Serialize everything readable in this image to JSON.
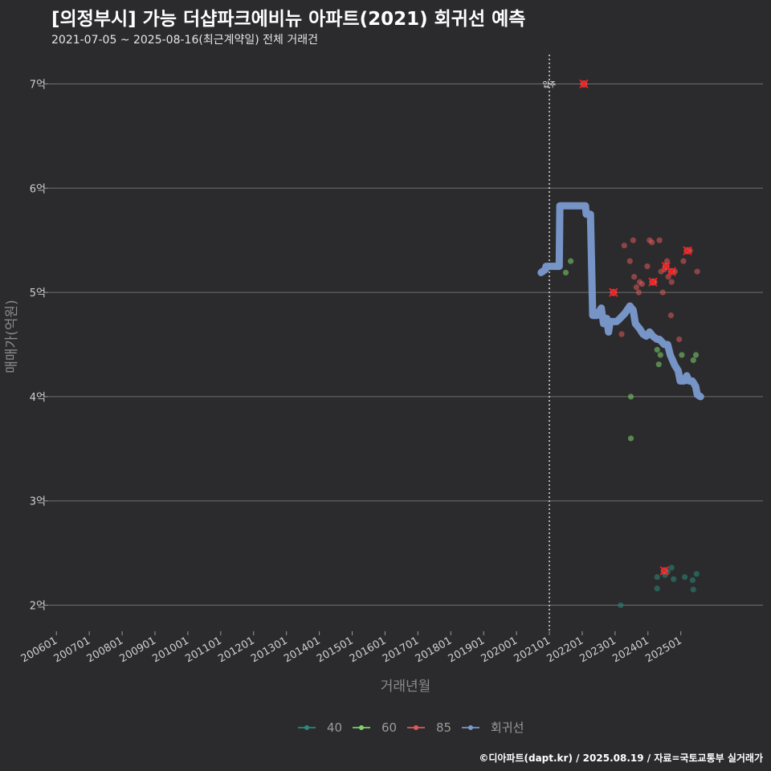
{
  "title": "[의정부시] 가능 더샵파크에비뉴 아파트(2021) 회귀선 예측",
  "subtitle": "2021-07-05 ~ 2025-08-16(최근계약일) 전체 거래건",
  "footer": "©디아파트(dapt.kr) / 2025.08.19 / 자료=국토교통부 실거래가",
  "chart_data": {
    "type": "scatter",
    "xlabel": "거래년월",
    "ylabel": "매매가(억원)",
    "x_unit": "year (decimal)",
    "xlim": [
      2005.75,
      2027.5
    ],
    "ylim": [
      1.75,
      7.25
    ],
    "x_ticks": [
      {
        "label": "200601",
        "x": 2006.0
      },
      {
        "label": "200701",
        "x": 2007.0
      },
      {
        "label": "200801",
        "x": 2008.0
      },
      {
        "label": "200901",
        "x": 2009.0
      },
      {
        "label": "201001",
        "x": 2010.0
      },
      {
        "label": "201101",
        "x": 2011.0
      },
      {
        "label": "201201",
        "x": 2012.0
      },
      {
        "label": "201301",
        "x": 2013.0
      },
      {
        "label": "201401",
        "x": 2014.0
      },
      {
        "label": "201501",
        "x": 2015.0
      },
      {
        "label": "201601",
        "x": 2016.0
      },
      {
        "label": "201701",
        "x": 2017.0
      },
      {
        "label": "201801",
        "x": 2018.0
      },
      {
        "label": "201901",
        "x": 2019.0
      },
      {
        "label": "202001",
        "x": 2020.0
      },
      {
        "label": "202101",
        "x": 2021.0
      },
      {
        "label": "202201",
        "x": 2022.0
      },
      {
        "label": "202301",
        "x": 2023.0
      },
      {
        "label": "202401",
        "x": 2024.0
      },
      {
        "label": "202501",
        "x": 2025.0
      }
    ],
    "y_ticks": [
      {
        "label": "2억",
        "y": 2
      },
      {
        "label": "3억",
        "y": 3
      },
      {
        "label": "4억",
        "y": 4
      },
      {
        "label": "5억",
        "y": 5
      },
      {
        "label": "6억",
        "y": 6
      },
      {
        "label": "7억",
        "y": 7
      }
    ],
    "annotation": {
      "label": "입주",
      "x": 2021.0
    },
    "legend": [
      {
        "name": "40",
        "color": "#2a8a7a"
      },
      {
        "name": "60",
        "color": "#7ed36b"
      },
      {
        "name": "85",
        "color": "#e05a5a"
      },
      {
        "name": "회귀선",
        "color": "#7b9ad0"
      }
    ],
    "series": [
      {
        "name": "40",
        "color": "#2a8a7a",
        "points": [
          [
            2023.17,
            2.0
          ],
          [
            2024.28,
            2.27
          ],
          [
            2024.28,
            2.16
          ],
          [
            2024.52,
            2.29
          ],
          [
            2024.72,
            2.36
          ],
          [
            2024.78,
            2.25
          ],
          [
            2025.12,
            2.27
          ],
          [
            2025.38,
            2.15
          ],
          [
            2025.48,
            2.3
          ],
          [
            2025.36,
            2.24
          ],
          [
            2024.6,
            2.32
          ]
        ]
      },
      {
        "name": "60",
        "color": "#7ed36b",
        "points": [
          [
            2021.5,
            5.19
          ],
          [
            2021.65,
            5.3
          ],
          [
            2023.48,
            4.0
          ],
          [
            2023.48,
            3.6
          ],
          [
            2024.28,
            4.45
          ],
          [
            2024.33,
            4.31
          ],
          [
            2024.38,
            4.4
          ],
          [
            2025.03,
            4.4
          ],
          [
            2025.38,
            4.35
          ],
          [
            2025.46,
            4.4
          ]
        ]
      },
      {
        "name": "85",
        "color": "#e05a5a",
        "points": [
          [
            2023.2,
            4.6
          ],
          [
            2023.28,
            5.45
          ],
          [
            2023.45,
            5.3
          ],
          [
            2023.55,
            5.5
          ],
          [
            2023.58,
            5.15
          ],
          [
            2023.65,
            5.05
          ],
          [
            2023.72,
            5.0
          ],
          [
            2023.75,
            5.1
          ],
          [
            2023.82,
            5.08
          ],
          [
            2023.98,
            5.25
          ],
          [
            2024.05,
            5.5
          ],
          [
            2024.12,
            5.48
          ],
          [
            2024.2,
            5.1
          ],
          [
            2024.35,
            5.5
          ],
          [
            2024.4,
            5.2
          ],
          [
            2024.45,
            5.0
          ],
          [
            2024.5,
            5.22
          ],
          [
            2024.58,
            5.3
          ],
          [
            2024.62,
            5.15
          ],
          [
            2024.7,
            4.78
          ],
          [
            2024.72,
            5.1
          ],
          [
            2024.82,
            5.2
          ],
          [
            2024.95,
            4.55
          ],
          [
            2025.08,
            5.3
          ],
          [
            2025.5,
            5.2
          ],
          [
            2025.28,
            5.4
          ]
        ]
      }
    ],
    "highlighted_deals": [
      [
        2022.05,
        7.0
      ],
      [
        2022.95,
        5.0
      ],
      [
        2024.15,
        5.1
      ],
      [
        2024.55,
        5.25
      ],
      [
        2024.72,
        5.2
      ],
      [
        2025.2,
        5.4
      ],
      [
        2024.5,
        2.33
      ]
    ],
    "regression": {
      "name": "회귀선",
      "color": "#7b9ad0",
      "points": [
        [
          2020.75,
          5.19
        ],
        [
          2020.88,
          5.22
        ],
        [
          2020.9,
          5.25
        ],
        [
          2021.3,
          5.25
        ],
        [
          2021.32,
          5.83
        ],
        [
          2022.1,
          5.83
        ],
        [
          2022.12,
          5.75
        ],
        [
          2022.25,
          5.75
        ],
        [
          2022.32,
          4.78
        ],
        [
          2022.45,
          4.78
        ],
        [
          2022.58,
          4.85
        ],
        [
          2022.65,
          4.7
        ],
        [
          2022.75,
          4.75
        ],
        [
          2022.8,
          4.62
        ],
        [
          2022.85,
          4.72
        ],
        [
          2023.05,
          4.72
        ],
        [
          2023.15,
          4.75
        ],
        [
          2023.3,
          4.8
        ],
        [
          2023.45,
          4.87
        ],
        [
          2023.55,
          4.83
        ],
        [
          2023.62,
          4.7
        ],
        [
          2023.75,
          4.65
        ],
        [
          2023.85,
          4.6
        ],
        [
          2023.95,
          4.58
        ],
        [
          2024.05,
          4.62
        ],
        [
          2024.15,
          4.58
        ],
        [
          2024.28,
          4.55
        ],
        [
          2024.35,
          4.55
        ],
        [
          2024.5,
          4.5
        ],
        [
          2024.6,
          4.5
        ],
        [
          2024.68,
          4.4
        ],
        [
          2024.82,
          4.3
        ],
        [
          2024.92,
          4.25
        ],
        [
          2024.98,
          4.15
        ],
        [
          2025.1,
          4.15
        ],
        [
          2025.18,
          4.2
        ],
        [
          2025.25,
          4.15
        ],
        [
          2025.35,
          4.15
        ],
        [
          2025.45,
          4.1
        ],
        [
          2025.5,
          4.02
        ],
        [
          2025.6,
          4.0
        ]
      ]
    }
  }
}
